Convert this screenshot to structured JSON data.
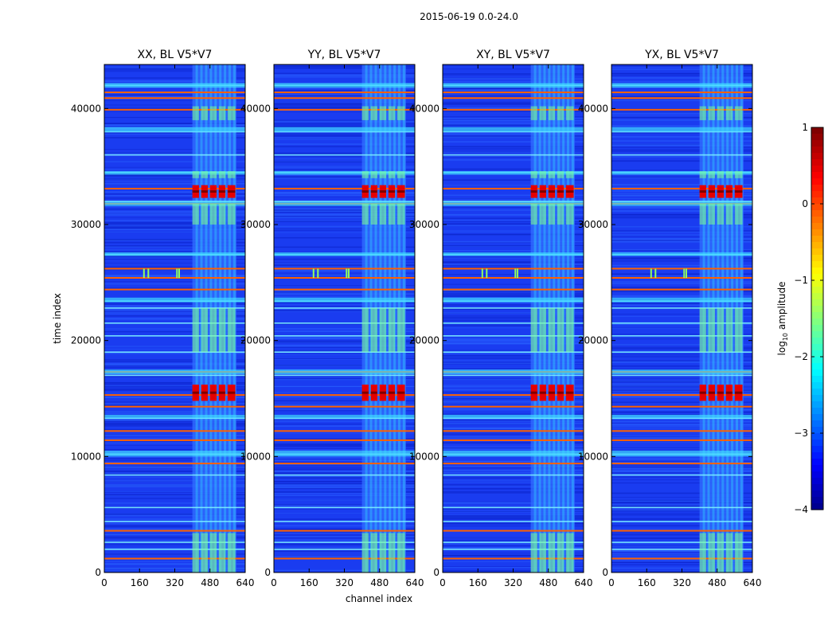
{
  "chart_data": {
    "type": "heatmap",
    "suptitle": "2015-06-19 0.0-24.0",
    "xlabel": "channel index",
    "ylabel": "time index",
    "xlim": [
      0,
      640
    ],
    "ylim": [
      0,
      43800
    ],
    "x_ticks": [
      "0",
      "160",
      "320",
      "480",
      "640"
    ],
    "x_tick_values": [
      0,
      160,
      320,
      480,
      640
    ],
    "y_ticks": [
      "0",
      "10000",
      "20000",
      "30000",
      "40000"
    ],
    "y_tick_values": [
      0,
      10000,
      20000,
      30000,
      40000
    ],
    "panels": [
      {
        "title": "XX, BL V5*V7"
      },
      {
        "title": "YY, BL V5*V7"
      },
      {
        "title": "XY, BL V5*V7"
      },
      {
        "title": "YX, BL V5*V7"
      }
    ],
    "colorbar": {
      "label": "log",
      "label_sub": "10",
      "label_rest": " amplitude",
      "range": [
        -4,
        1
      ],
      "ticks": [
        "1",
        "0",
        "−1",
        "−2",
        "−3",
        "−4"
      ],
      "tick_values": [
        1,
        0,
        -1,
        -2,
        -3,
        -4
      ],
      "colormap": "jet"
    },
    "features": {
      "rfi_channel_band": [
        400,
        600
      ],
      "strong_rfi_blocks_time": [
        [
          14800,
          16200
        ],
        [
          32300,
          33400
        ]
      ],
      "colors": {
        "low": "#1030e0",
        "mid": "#30d0ff",
        "high": "#ff3000",
        "max": "#800000"
      }
    }
  }
}
